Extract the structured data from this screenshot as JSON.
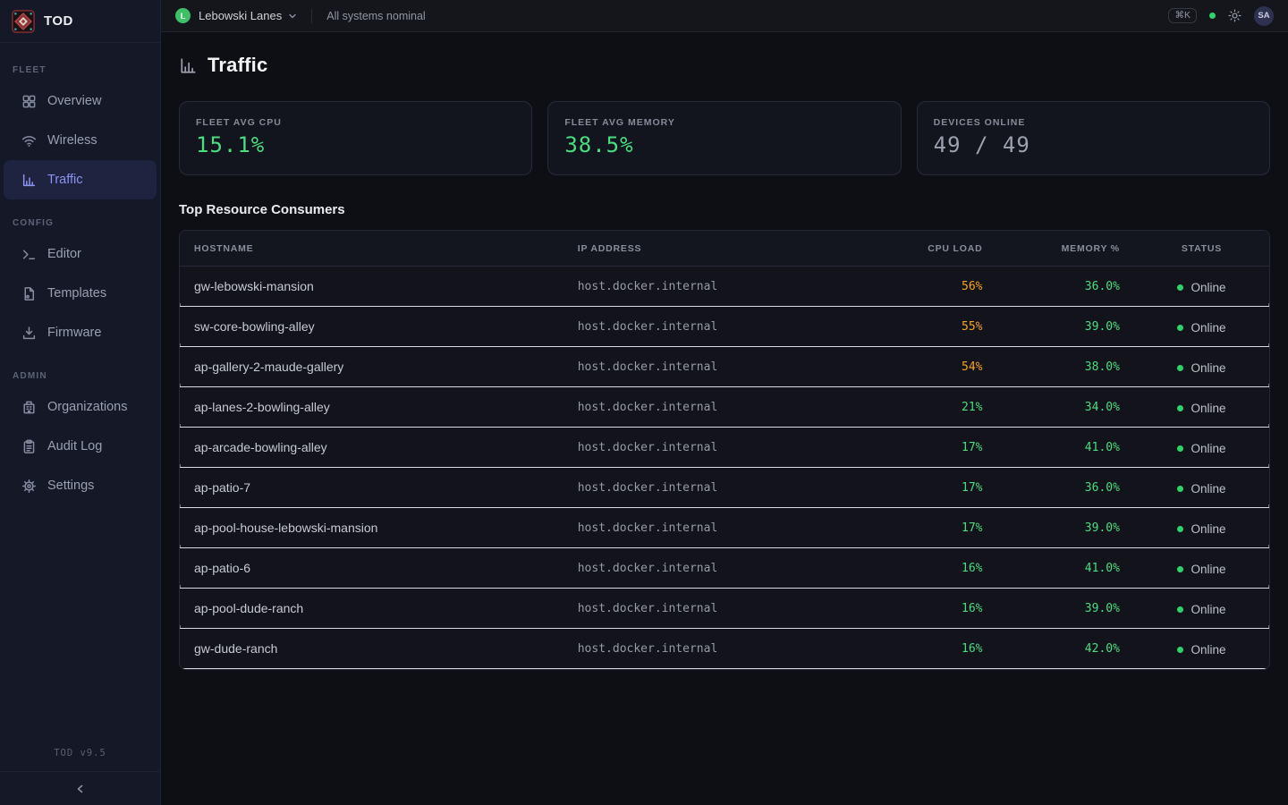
{
  "app": {
    "name": "TOD",
    "version": "TOD v9.5"
  },
  "topbar": {
    "org": {
      "initial": "L",
      "name": "Lebowski Lanes"
    },
    "status_text": "All systems nominal",
    "shortcut": "⌘K",
    "avatar": "SA"
  },
  "sidebar": {
    "sections": [
      {
        "label": "FLEET",
        "items": [
          {
            "label": "Overview",
            "icon": "grid-icon",
            "active": false
          },
          {
            "label": "Wireless",
            "icon": "wifi-icon",
            "active": false
          },
          {
            "label": "Traffic",
            "icon": "bar-chart-icon",
            "active": true
          }
        ]
      },
      {
        "label": "CONFIG",
        "items": [
          {
            "label": "Editor",
            "icon": "terminal-icon",
            "active": false
          },
          {
            "label": "Templates",
            "icon": "file-icon",
            "active": false
          },
          {
            "label": "Firmware",
            "icon": "download-icon",
            "active": false
          }
        ]
      },
      {
        "label": "ADMIN",
        "items": [
          {
            "label": "Organizations",
            "icon": "building-icon",
            "active": false
          },
          {
            "label": "Audit Log",
            "icon": "clipboard-icon",
            "active": false
          },
          {
            "label": "Settings",
            "icon": "gear-icon",
            "active": false
          }
        ]
      }
    ]
  },
  "page": {
    "title": "Traffic",
    "stats": [
      {
        "label": "FLEET AVG CPU",
        "value": "15.1%",
        "color": "#4ade80"
      },
      {
        "label": "FLEET AVG MEMORY",
        "value": "38.5%",
        "color": "#4ade80"
      },
      {
        "label": "DEVICES ONLINE",
        "value": "49 / 49",
        "color": "#9ba1ae"
      }
    ],
    "table": {
      "title": "Top Resource Consumers",
      "columns": [
        "HOSTNAME",
        "IP ADDRESS",
        "CPU LOAD",
        "MEMORY %",
        "STATUS"
      ],
      "rows": [
        {
          "hostname": "gw-lebowski-mansion",
          "ip": "host.docker.internal",
          "cpu": "56%",
          "cpu_level": "high",
          "memory": "36.0%",
          "status": "Online"
        },
        {
          "hostname": "sw-core-bowling-alley",
          "ip": "host.docker.internal",
          "cpu": "55%",
          "cpu_level": "high",
          "memory": "39.0%",
          "status": "Online"
        },
        {
          "hostname": "ap-gallery-2-maude-gallery",
          "ip": "host.docker.internal",
          "cpu": "54%",
          "cpu_level": "high",
          "memory": "38.0%",
          "status": "Online"
        },
        {
          "hostname": "ap-lanes-2-bowling-alley",
          "ip": "host.docker.internal",
          "cpu": "21%",
          "cpu_level": "low",
          "memory": "34.0%",
          "status": "Online"
        },
        {
          "hostname": "ap-arcade-bowling-alley",
          "ip": "host.docker.internal",
          "cpu": "17%",
          "cpu_level": "low",
          "memory": "41.0%",
          "status": "Online"
        },
        {
          "hostname": "ap-patio-7",
          "ip": "host.docker.internal",
          "cpu": "17%",
          "cpu_level": "low",
          "memory": "36.0%",
          "status": "Online"
        },
        {
          "hostname": "ap-pool-house-lebowski-mansion",
          "ip": "host.docker.internal",
          "cpu": "17%",
          "cpu_level": "low",
          "memory": "39.0%",
          "status": "Online"
        },
        {
          "hostname": "ap-patio-6",
          "ip": "host.docker.internal",
          "cpu": "16%",
          "cpu_level": "low",
          "memory": "41.0%",
          "status": "Online"
        },
        {
          "hostname": "ap-pool-dude-ranch",
          "ip": "host.docker.internal",
          "cpu": "16%",
          "cpu_level": "low",
          "memory": "39.0%",
          "status": "Online"
        },
        {
          "hostname": "gw-dude-ranch",
          "ip": "host.docker.internal",
          "cpu": "16%",
          "cpu_level": "low",
          "memory": "42.0%",
          "status": "Online"
        }
      ]
    }
  },
  "colors": {
    "cpu_high": "#f5a524",
    "cpu_low": "#4ade80",
    "memory": "#4ade80",
    "online_dot": "#2fd36b",
    "active_nav": "#8b93f0"
  }
}
